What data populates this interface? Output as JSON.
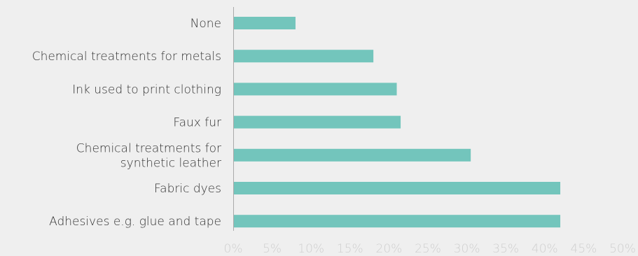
{
  "chart_data": {
    "type": "bar",
    "orientation": "horizontal",
    "categories": [
      [
        "None"
      ],
      [
        "Chemical treatments for metals"
      ],
      [
        "Ink used to print clothing"
      ],
      [
        "Faux fur"
      ],
      [
        "Chemical treatments for",
        "synthetic leather"
      ],
      [
        "Fabric dyes"
      ],
      [
        "Adhesives e.g. glue and tape"
      ]
    ],
    "values": [
      8,
      18,
      21,
      21.5,
      30.5,
      42,
      42
    ],
    "xlim": [
      0,
      50
    ],
    "xticks": [
      0,
      5,
      10,
      15,
      20,
      25,
      30,
      35,
      40,
      45,
      50
    ],
    "tick_suffix": "%",
    "title": "",
    "xlabel": "",
    "ylabel": "",
    "grid": false,
    "bar_color": "#73c5bc",
    "axis_color": "#aaaaaa",
    "background": "#efefef"
  }
}
